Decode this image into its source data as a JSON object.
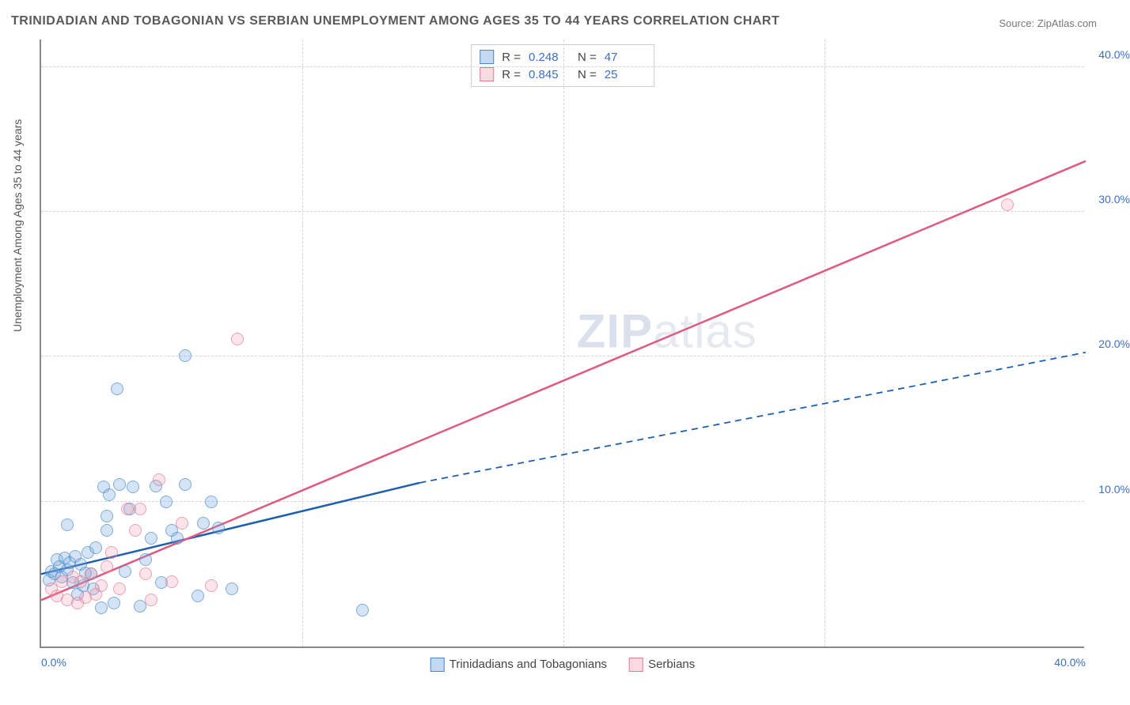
{
  "title": "TRINIDADIAN AND TOBAGONIAN VS SERBIAN UNEMPLOYMENT AMONG AGES 35 TO 44 YEARS CORRELATION CHART",
  "source": "Source: ZipAtlas.com",
  "y_axis_label": "Unemployment Among Ages 35 to 44 years",
  "watermark_bold": "ZIP",
  "watermark_light": "atlas",
  "chart": {
    "type": "scatter",
    "xlim": [
      0,
      40
    ],
    "ylim": [
      0,
      42
    ],
    "x_ticks": [
      0,
      10,
      20,
      30,
      40
    ],
    "x_tick_labels": [
      "0.0%",
      "",
      "",
      "",
      "40.0%"
    ],
    "y_ticks": [
      10,
      20,
      30,
      40
    ],
    "y_tick_labels": [
      "10.0%",
      "20.0%",
      "30.0%",
      "40.0%"
    ],
    "background_color": "#ffffff",
    "grid_color": "#d5d5d5",
    "axis_color": "#888888",
    "series": [
      {
        "name": "Trinidadians and Tobagonians",
        "color_fill": "rgba(120,170,225,0.45)",
        "color_stroke": "#4a88c7",
        "r": 0.248,
        "n": 47,
        "trend": {
          "x1": 0,
          "y1": 5.0,
          "x2": 14.5,
          "y2": 11.3,
          "dash_from": 14.5,
          "dash_to_x": 40,
          "dash_to_y": 20.3
        },
        "points": [
          [
            0.3,
            4.6
          ],
          [
            0.4,
            5.2
          ],
          [
            0.5,
            5.0
          ],
          [
            0.6,
            6.0
          ],
          [
            0.7,
            5.5
          ],
          [
            0.8,
            4.8
          ],
          [
            0.9,
            6.1
          ],
          [
            1.0,
            5.3
          ],
          [
            1.1,
            5.8
          ],
          [
            1.2,
            4.4
          ],
          [
            1.3,
            6.2
          ],
          [
            1.4,
            3.6
          ],
          [
            1.5,
            5.7
          ],
          [
            1.6,
            4.2
          ],
          [
            1.7,
            5.1
          ],
          [
            1.8,
            6.5
          ],
          [
            1.9,
            5.0
          ],
          [
            2.0,
            4.0
          ],
          [
            2.1,
            6.8
          ],
          [
            2.3,
            2.7
          ],
          [
            2.4,
            11.0
          ],
          [
            2.5,
            9.0
          ],
          [
            2.6,
            10.5
          ],
          [
            2.8,
            3.0
          ],
          [
            3.0,
            11.2
          ],
          [
            3.2,
            5.2
          ],
          [
            3.4,
            9.5
          ],
          [
            3.5,
            11.0
          ],
          [
            3.8,
            2.8
          ],
          [
            4.0,
            6.0
          ],
          [
            4.2,
            7.5
          ],
          [
            4.4,
            11.1
          ],
          [
            4.6,
            4.4
          ],
          [
            4.8,
            10.0
          ],
          [
            5.0,
            8.0
          ],
          [
            5.2,
            7.5
          ],
          [
            5.5,
            11.2
          ],
          [
            6.0,
            3.5
          ],
          [
            6.2,
            8.5
          ],
          [
            6.5,
            10.0
          ],
          [
            6.8,
            8.2
          ],
          [
            7.3,
            4.0
          ],
          [
            2.9,
            17.8
          ],
          [
            5.5,
            20.1
          ],
          [
            12.3,
            2.5
          ],
          [
            1.0,
            8.4
          ],
          [
            2.5,
            8.0
          ]
        ]
      },
      {
        "name": "Serbians",
        "color_fill": "rgba(240,150,170,0.35)",
        "color_stroke": "#e27a94",
        "r": 0.845,
        "n": 25,
        "trend": {
          "x1": 0,
          "y1": 3.2,
          "x2": 40,
          "y2": 33.5
        },
        "points": [
          [
            0.4,
            4.0
          ],
          [
            0.6,
            3.5
          ],
          [
            0.8,
            4.5
          ],
          [
            1.0,
            3.2
          ],
          [
            1.2,
            4.8
          ],
          [
            1.4,
            3.0
          ],
          [
            1.5,
            4.5
          ],
          [
            1.7,
            3.4
          ],
          [
            1.9,
            5.0
          ],
          [
            2.1,
            3.6
          ],
          [
            2.3,
            4.2
          ],
          [
            2.5,
            5.5
          ],
          [
            2.7,
            6.5
          ],
          [
            3.0,
            4.0
          ],
          [
            3.3,
            9.5
          ],
          [
            3.6,
            8.0
          ],
          [
            3.8,
            9.5
          ],
          [
            4.0,
            5.0
          ],
          [
            4.2,
            3.2
          ],
          [
            4.5,
            11.5
          ],
          [
            5.0,
            4.5
          ],
          [
            5.4,
            8.5
          ],
          [
            7.5,
            21.2
          ],
          [
            6.5,
            4.2
          ],
          [
            37.0,
            30.5
          ]
        ]
      }
    ]
  },
  "legend_top": {
    "r_label": "R =",
    "n_label": "N ="
  },
  "legend_bottom": {
    "items": [
      "Trinidadians and Tobagonians",
      "Serbians"
    ]
  }
}
